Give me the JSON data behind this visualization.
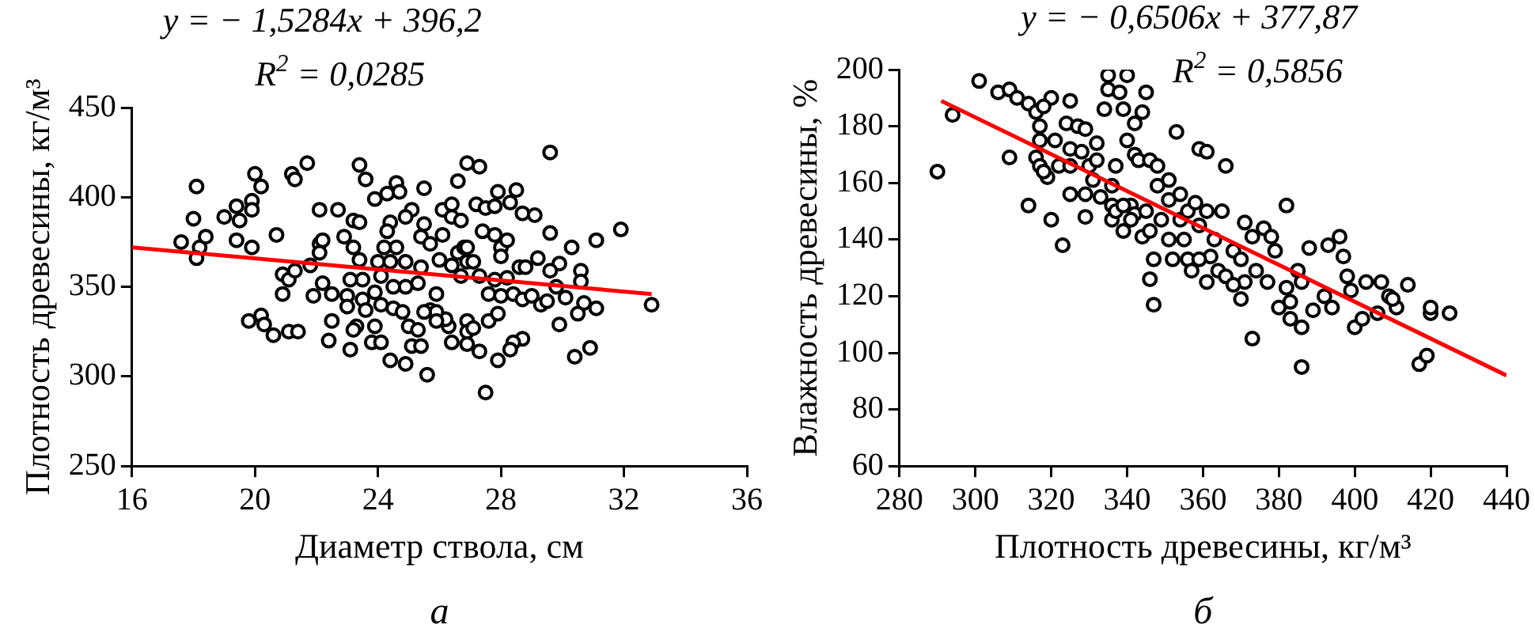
{
  "chart_data": [
    {
      "type": "scatter",
      "xlabel": "Диаметр ствола, см",
      "ylabel": "Плотность древесины, кг/м³",
      "annotations": [
        "y = − 1,5284x + 396,2",
        "R$^{2}$ = 0,0285",
        "а"
      ],
      "xlim": [
        16,
        36
      ],
      "xticks": [
        16,
        20,
        24,
        28,
        32,
        36
      ],
      "ylim": [
        250,
        450
      ],
      "yticks": [
        250,
        300,
        350,
        400,
        450
      ],
      "grid": false,
      "legend": false,
      "series": [
        {
          "marker": "circle",
          "color": "#000000",
          "x": [
            18.1,
            18.0,
            17.6,
            18.2,
            18.1,
            18.4,
            19.0,
            19.5,
            19.4,
            19.9,
            19.9,
            20.0,
            20.2,
            19.9,
            19.4,
            21.2,
            21.3,
            21.7,
            20.7,
            20.9,
            21.1,
            21.3,
            20.9,
            21.8,
            22.1,
            22.7,
            22.1,
            22.2,
            22.1,
            22.2,
            21.9,
            22.5,
            19.8,
            20.2,
            20.3,
            20.6,
            21.1,
            21.4,
            22.4,
            22.5,
            23.1,
            23.4,
            23.6,
            23.2,
            23.4,
            22.9,
            23.2,
            23.4,
            23.5,
            23.1,
            23.0,
            23.0,
            23.5,
            23.6,
            23.3,
            23.2,
            23.8,
            23.9,
            24.1,
            24.4,
            24.9,
            25.6,
            24.4,
            23.9,
            24.3,
            24.6,
            24.7,
            24.3,
            24.6,
            24.2,
            24.0,
            24.4,
            24.9,
            25.1,
            24.9,
            25.5,
            25.5,
            25.4,
            25.7,
            25.4,
            25.3,
            24.9,
            24.5,
            24.1,
            23.9,
            24.1,
            24.5,
            24.8,
            25.0,
            25.3,
            25.1,
            25.4,
            25.7,
            25.9,
            26.1,
            26.4,
            26.1,
            26.0,
            26.4,
            26.6,
            26.8,
            26.9,
            26.4,
            26.7,
            26.6,
            26.9,
            27.3,
            27.2,
            27.5,
            27.9,
            28.5,
            27.8,
            28.3,
            28.7,
            29.1,
            27.4,
            27.8,
            28.0,
            28.2,
            28.0,
            28.6,
            28.8,
            29.2,
            29.9,
            29.6,
            30.3,
            31.1,
            31.9,
            29.6,
            26.9,
            27.1,
            26.7,
            27.3,
            27.8,
            28.2,
            27.6,
            28.0,
            28.4,
            28.7,
            29.0,
            29.3,
            29.5,
            29.6,
            29.8,
            30.1,
            30.6,
            30.6,
            30.7,
            31.1,
            30.5,
            29.9,
            30.4,
            30.9,
            32.9,
            28.7,
            28.4,
            28.3,
            27.9,
            27.5,
            27.3,
            26.9,
            26.4,
            26.3,
            26.9,
            26.9,
            27.1,
            27.6,
            27.9,
            26.2,
            25.9,
            25.5,
            25.9
          ],
          "values": [
            406,
            388,
            375,
            372,
            366,
            378,
            389,
            387,
            395,
            398,
            393,
            413,
            406,
            372,
            376,
            413,
            410,
            419,
            379,
            357,
            354,
            359,
            346,
            362,
            393,
            393,
            374,
            376,
            369,
            352,
            345,
            346,
            331,
            334,
            329,
            323,
            325,
            325,
            320,
            331,
            315,
            418,
            410,
            387,
            386,
            378,
            372,
            365,
            354,
            354,
            345,
            339,
            343,
            337,
            328,
            326,
            319,
            328,
            319,
            309,
            307,
            301,
            386,
            399,
            402,
            408,
            403,
            381,
            372,
            372,
            364,
            364,
            364,
            393,
            389,
            405,
            385,
            378,
            374,
            361,
            352,
            350,
            350,
            356,
            347,
            340,
            338,
            336,
            328,
            326,
            317,
            317,
            337,
            346,
            393,
            396,
            379,
            365,
            362,
            369,
            372,
            372,
            389,
            387,
            409,
            419,
            417,
            396,
            394,
            403,
            404,
            395,
            397,
            391,
            390,
            381,
            379,
            372,
            376,
            367,
            361,
            361,
            366,
            363,
            380,
            372,
            376,
            382,
            425,
            364,
            364,
            356,
            356,
            354,
            355,
            346,
            345,
            346,
            343,
            345,
            340,
            342,
            359,
            350,
            344,
            359,
            353,
            341,
            338,
            335,
            329,
            311,
            316,
            340,
            321,
            319,
            315,
            309,
            291,
            314,
            318,
            319,
            328,
            331,
            325,
            327,
            331,
            335,
            332,
            336,
            336,
            331
          ]
        },
        {
          "type": "line",
          "marker": "none",
          "color": "#ff0000",
          "x": [
            16,
            32.9
          ],
          "values": [
            372,
            346
          ]
        }
      ]
    },
    {
      "type": "scatter",
      "xlabel": "Плотность древесины, кг/м³",
      "ylabel": "Влажность древесины, %",
      "annotations": [
        "y = − 0,6506x + 377,87",
        "R$^{2}$ = 0,5856",
        "б"
      ],
      "xlim": [
        280,
        440
      ],
      "xticks": [
        280,
        300,
        320,
        340,
        360,
        380,
        400,
        420,
        440
      ],
      "ylim": [
        60,
        200
      ],
      "yticks": [
        60,
        80,
        100,
        120,
        140,
        160,
        180,
        200
      ],
      "grid": false,
      "legend": false,
      "series": [
        {
          "marker": "circle",
          "color": "#000000",
          "x": [
            290,
            294,
            301,
            306,
            309,
            311,
            314,
            316,
            320,
            318,
            317,
            317,
            316,
            309,
            314,
            319,
            320,
            323,
            317,
            318,
            321,
            322,
            325,
            325,
            325,
            324,
            325,
            327,
            329,
            328,
            329,
            329,
            330,
            331,
            332,
            332,
            333,
            334,
            335,
            340,
            335,
            338,
            339,
            340,
            342,
            342,
            344,
            345,
            343,
            346,
            348,
            337,
            336,
            336,
            336,
            339,
            337,
            341,
            342,
            345,
            348,
            349,
            344,
            346,
            351,
            351,
            353,
            354,
            354,
            356,
            358,
            359,
            361,
            361,
            359,
            352,
            356,
            357,
            346,
            347,
            361,
            363,
            365,
            366,
            364,
            362,
            366,
            368,
            371,
            370,
            373,
            374,
            376,
            378,
            379,
            380,
            370,
            373,
            382,
            377,
            382,
            383,
            383,
            386,
            386,
            385,
            386,
            388,
            389,
            392,
            394,
            393,
            396,
            397,
            398,
            400,
            399,
            402,
            403,
            407,
            409,
            411,
            414,
            417,
            419,
            420,
            420,
            425,
            410,
            406,
            371,
            368,
            359,
            355,
            351,
            347,
            341,
            339
          ],
          "values": [
            164,
            184,
            196,
            192,
            193,
            190,
            188,
            185,
            190,
            187,
            180,
            175,
            169,
            169,
            152,
            162,
            147,
            138,
            166,
            164,
            175,
            166,
            156,
            166,
            172,
            181,
            189,
            180,
            179,
            171,
            156,
            148,
            166,
            161,
            174,
            168,
            155,
            186,
            198,
            198,
            193,
            192,
            186,
            175,
            170,
            181,
            185,
            192,
            168,
            168,
            166,
            166,
            159,
            152,
            147,
            143,
            150,
            152,
            149,
            150,
            159,
            147,
            141,
            143,
            161,
            154,
            178,
            147,
            156,
            150,
            153,
            172,
            171,
            150,
            145,
            133,
            133,
            129,
            126,
            117,
            125,
            140,
            150,
            166,
            129,
            134,
            127,
            136,
            146,
            133,
            141,
            129,
            144,
            141,
            136,
            116,
            119,
            105,
            152,
            125,
            123,
            118,
            112,
            109,
            95,
            129,
            125,
            137,
            115,
            120,
            116,
            138,
            141,
            134,
            127,
            109,
            122,
            112,
            125,
            125,
            120,
            116,
            124,
            96,
            99,
            114,
            116,
            114,
            119,
            114,
            125,
            124,
            133,
            140,
            140,
            133,
            147,
            152
          ]
        },
        {
          "type": "line",
          "marker": "none",
          "color": "#ff0000",
          "x": [
            291,
            440
          ],
          "values": [
            189,
            92
          ]
        }
      ]
    }
  ]
}
